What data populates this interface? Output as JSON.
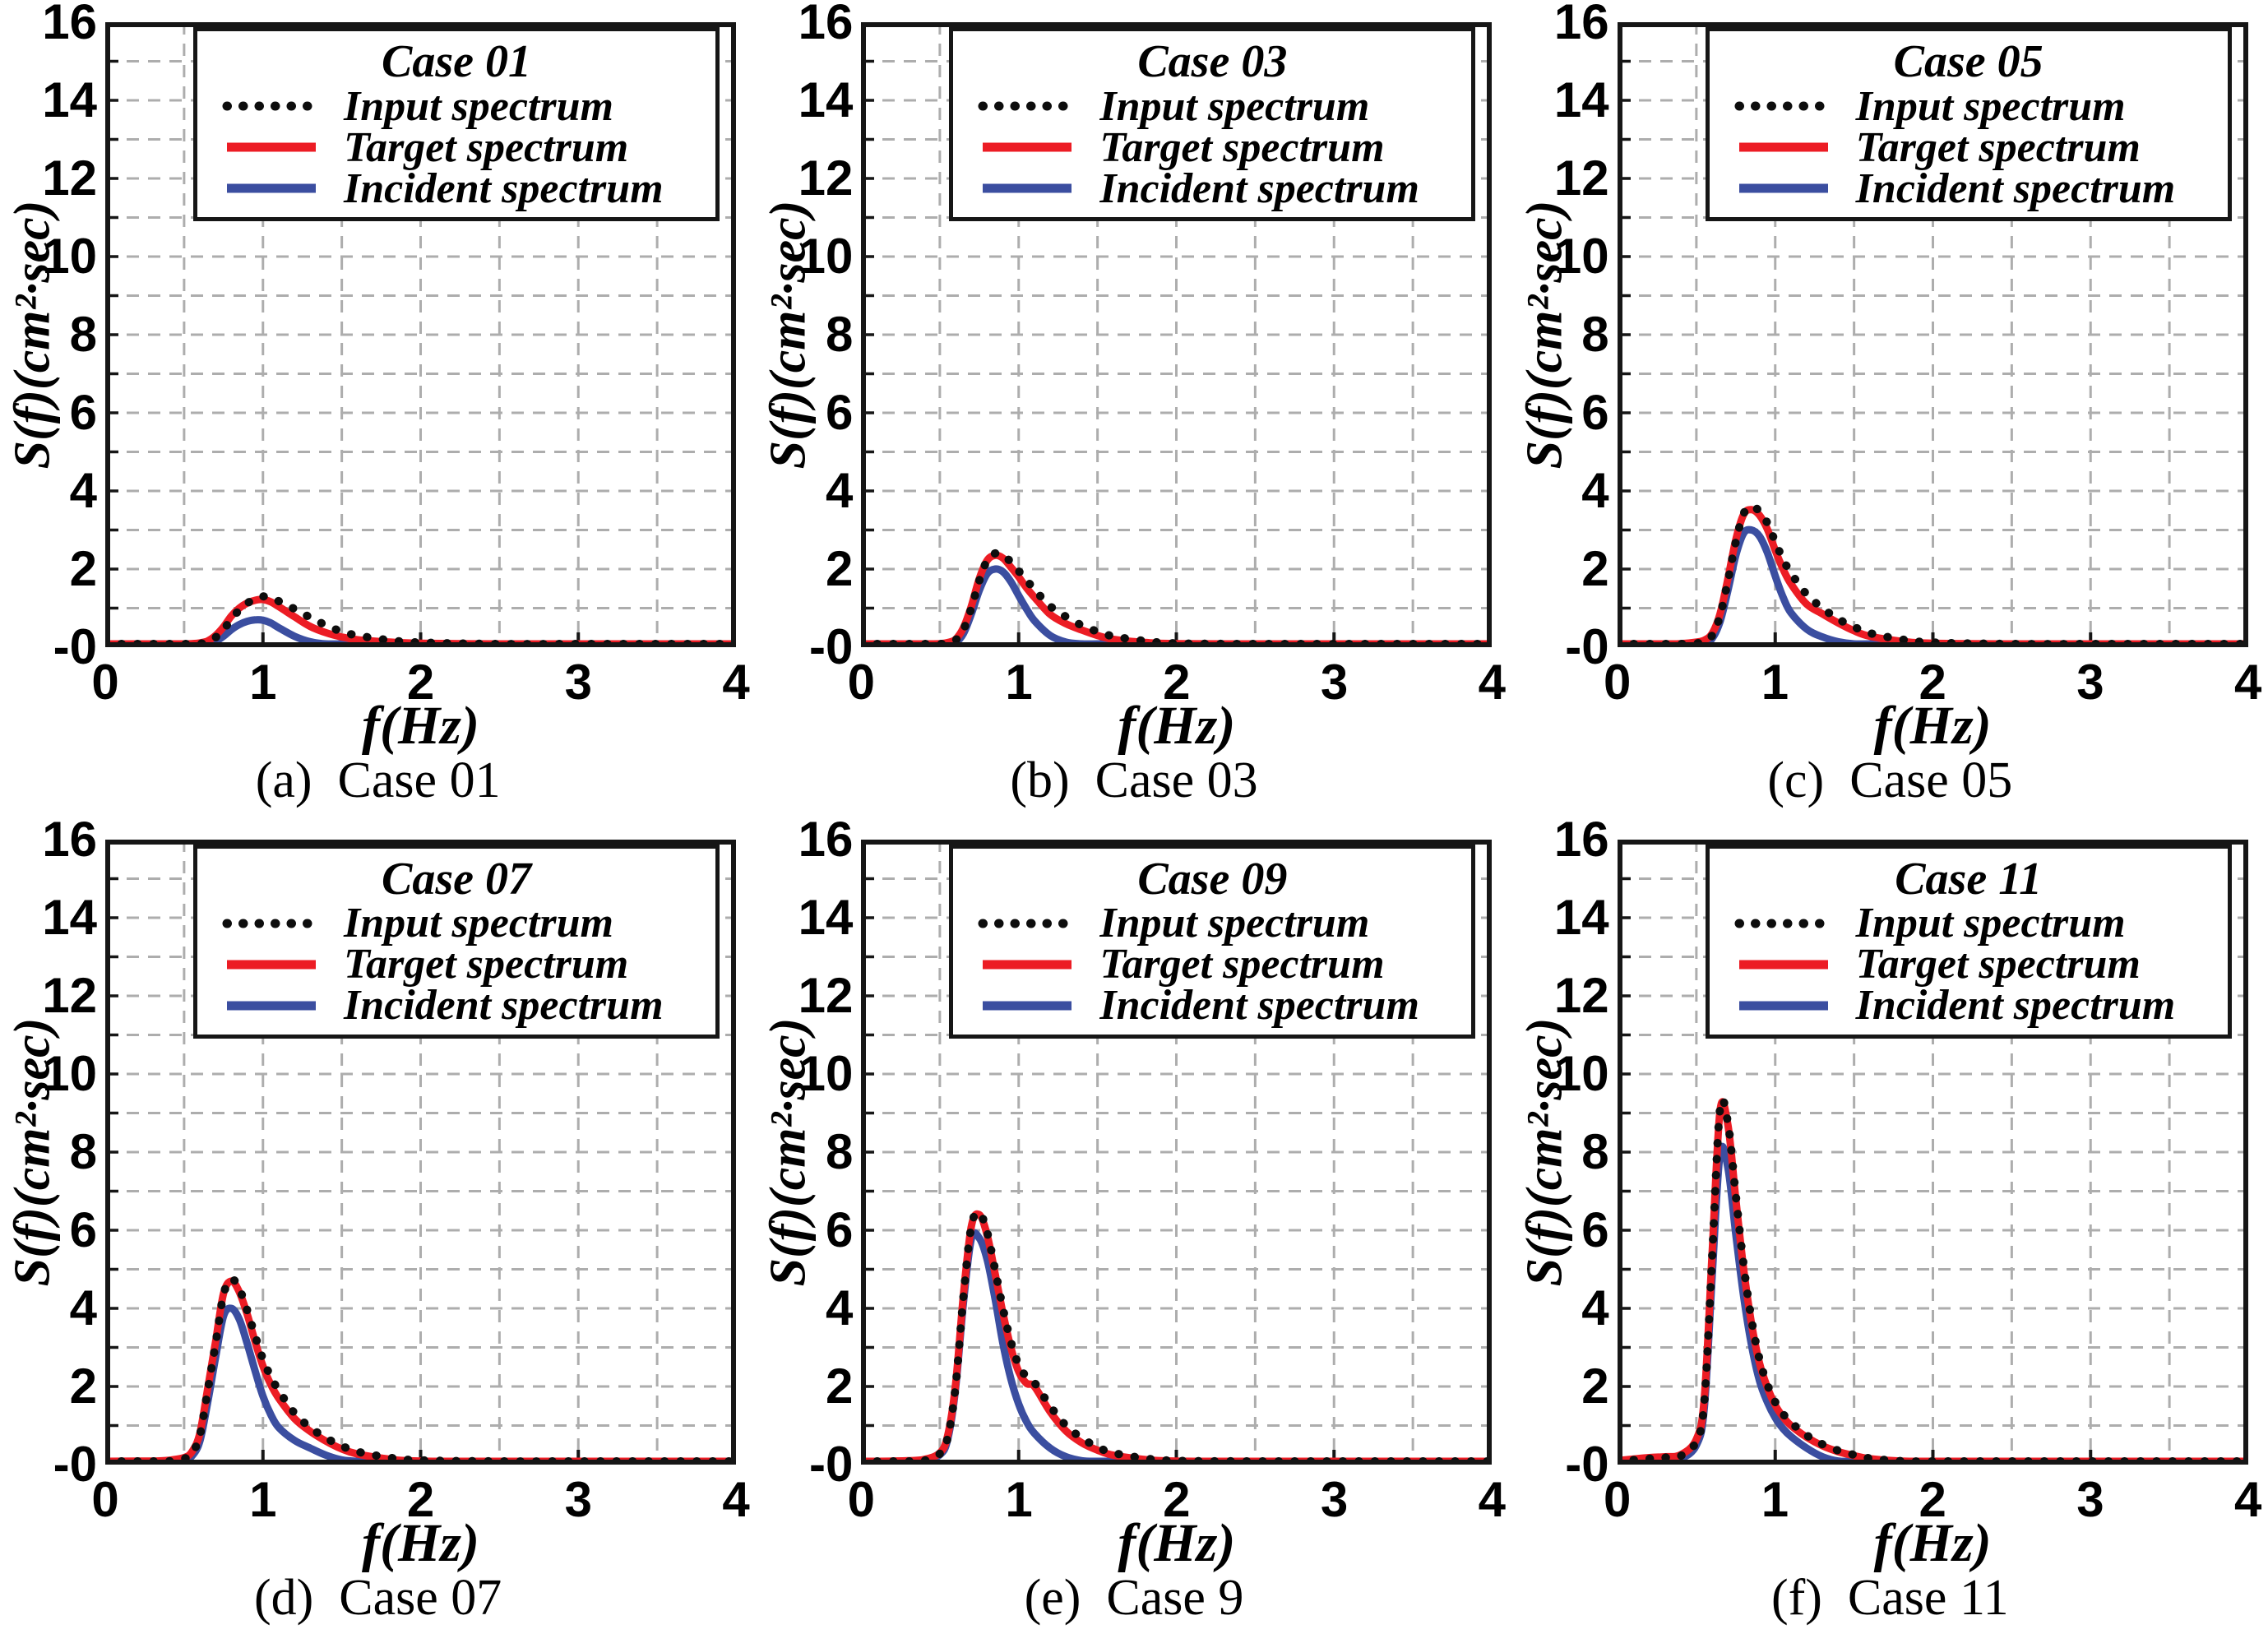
{
  "axes": {
    "xlabel": "f(Hz)",
    "ylabel": "S(f)(cm²·sec)",
    "x_ticks": [
      "0",
      "1",
      "2",
      "3",
      "4"
    ],
    "y_ticks": [
      "16",
      "14",
      "12",
      "10",
      "8",
      "6",
      "4",
      "2",
      "-0"
    ],
    "xlim": [
      0,
      4
    ],
    "ylim": [
      0,
      16
    ],
    "x_grid_step": 0.5,
    "y_grid_step": 1,
    "grid": "dashed"
  },
  "style": {
    "input_color": "#0d0d0d",
    "target_color": "#ec1c24",
    "incident_color": "#3b4ea0",
    "grid_color": "#adadad",
    "frame_color": "#161616",
    "background": "#ffffff"
  },
  "chart_data": [
    {
      "type": "line",
      "panel_label": "(a)",
      "caption": "(a)  Case 01",
      "legend_title": "Case 01",
      "xlabel": "f(Hz)",
      "ylabel": "S(f)(cm²·sec)",
      "xlim": [
        0,
        4
      ],
      "ylim": [
        0,
        16
      ],
      "legend_position": "top-right",
      "grid": "dashed",
      "x": [
        0,
        0.2,
        0.3,
        0.4,
        0.5,
        0.55,
        0.6,
        0.65,
        0.7,
        0.75,
        0.8,
        0.85,
        0.9,
        0.95,
        1.0,
        1.05,
        1.1,
        1.2,
        1.3,
        1.4,
        1.5,
        1.6,
        1.8,
        2.0,
        2.5,
        3.0,
        3.5,
        4.0
      ],
      "series": [
        {
          "name": "Input spectrum",
          "style": "dotted",
          "color": "#0d0d0d",
          "values": [
            0.05,
            0.05,
            0.05,
            0.05,
            0.06,
            0.07,
            0.09,
            0.13,
            0.25,
            0.45,
            0.72,
            0.95,
            1.12,
            1.25,
            1.3,
            1.28,
            1.18,
            0.98,
            0.76,
            0.56,
            0.4,
            0.3,
            0.18,
            0.12,
            0.08,
            0.07,
            0.06,
            0.06
          ]
        },
        {
          "name": "Target spectrum",
          "style": "solid",
          "color": "#ec1c24",
          "values": [
            0.07,
            0.07,
            0.07,
            0.07,
            0.08,
            0.09,
            0.11,
            0.16,
            0.3,
            0.52,
            0.8,
            1.0,
            1.13,
            1.2,
            1.22,
            1.16,
            1.04,
            0.78,
            0.53,
            0.37,
            0.26,
            0.19,
            0.13,
            0.1,
            0.08,
            0.08,
            0.08,
            0.08
          ]
        },
        {
          "name": "Incident spectrum",
          "style": "solid",
          "color": "#3b4ea0",
          "values": [
            0.02,
            0.02,
            0.02,
            0.02,
            0.03,
            0.04,
            0.05,
            0.08,
            0.15,
            0.28,
            0.45,
            0.58,
            0.66,
            0.7,
            0.69,
            0.62,
            0.5,
            0.28,
            0.14,
            0.08,
            0.05,
            0.03,
            0.02,
            0.02,
            0.01,
            0.01,
            0.01,
            0.01
          ]
        }
      ]
    },
    {
      "type": "line",
      "panel_label": "(b)",
      "caption": "(b)  Case 03",
      "legend_title": "Case 03",
      "xlabel": "f(Hz)",
      "ylabel": "S(f)(cm²·sec)",
      "xlim": [
        0,
        4
      ],
      "ylim": [
        0,
        16
      ],
      "legend_position": "top-right",
      "grid": "dashed",
      "x": [
        0,
        0.2,
        0.3,
        0.4,
        0.5,
        0.55,
        0.6,
        0.65,
        0.7,
        0.75,
        0.8,
        0.85,
        0.9,
        0.95,
        1.0,
        1.05,
        1.1,
        1.2,
        1.3,
        1.4,
        1.5,
        1.6,
        1.8,
        2.0,
        2.5,
        3.0,
        3.5,
        4.0
      ],
      "series": [
        {
          "name": "Input spectrum",
          "style": "dotted",
          "color": "#0d0d0d",
          "values": [
            0.05,
            0.05,
            0.05,
            0.05,
            0.07,
            0.1,
            0.18,
            0.45,
            1.0,
            1.7,
            2.22,
            2.4,
            2.37,
            2.18,
            1.95,
            1.72,
            1.48,
            1.05,
            0.78,
            0.56,
            0.4,
            0.28,
            0.16,
            0.1,
            0.07,
            0.06,
            0.05,
            0.05
          ]
        },
        {
          "name": "Target spectrum",
          "style": "solid",
          "color": "#ec1c24",
          "values": [
            0.07,
            0.07,
            0.07,
            0.07,
            0.09,
            0.12,
            0.2,
            0.5,
            1.05,
            1.75,
            2.22,
            2.35,
            2.28,
            2.05,
            1.8,
            1.52,
            1.28,
            0.84,
            0.6,
            0.44,
            0.3,
            0.2,
            0.12,
            0.09,
            0.08,
            0.08,
            0.08,
            0.08
          ]
        },
        {
          "name": "Incident spectrum",
          "style": "solid",
          "color": "#3b4ea0",
          "values": [
            0.02,
            0.02,
            0.02,
            0.02,
            0.04,
            0.06,
            0.12,
            0.35,
            0.85,
            1.45,
            1.88,
            2.0,
            1.93,
            1.68,
            1.32,
            0.98,
            0.68,
            0.3,
            0.13,
            0.07,
            0.04,
            0.03,
            0.02,
            0.02,
            0.01,
            0.01,
            0.01,
            0.01
          ]
        }
      ]
    },
    {
      "type": "line",
      "panel_label": "(c)",
      "caption": "(c)  Case 05",
      "legend_title": "Case 05",
      "xlabel": "f(Hz)",
      "ylabel": "S(f)(cm²·sec)",
      "xlim": [
        0,
        4
      ],
      "ylim": [
        0,
        16
      ],
      "legend_position": "top-right",
      "grid": "dashed",
      "x": [
        0,
        0.2,
        0.3,
        0.4,
        0.5,
        0.55,
        0.6,
        0.65,
        0.7,
        0.75,
        0.8,
        0.85,
        0.9,
        0.95,
        1.0,
        1.05,
        1.1,
        1.2,
        1.3,
        1.4,
        1.5,
        1.6,
        1.8,
        2.0,
        2.5,
        3.0,
        3.5,
        4.0
      ],
      "series": [
        {
          "name": "Input spectrum",
          "style": "dotted",
          "color": "#0d0d0d",
          "values": [
            0.05,
            0.05,
            0.05,
            0.06,
            0.1,
            0.15,
            0.3,
            0.8,
            1.7,
            2.7,
            3.42,
            3.6,
            3.48,
            3.18,
            2.7,
            2.25,
            1.9,
            1.35,
            1.0,
            0.72,
            0.52,
            0.36,
            0.2,
            0.12,
            0.08,
            0.06,
            0.06,
            0.06
          ]
        },
        {
          "name": "Target spectrum",
          "style": "solid",
          "color": "#ec1c24",
          "values": [
            0.08,
            0.08,
            0.08,
            0.09,
            0.13,
            0.18,
            0.35,
            0.85,
            1.75,
            2.75,
            3.4,
            3.52,
            3.38,
            3.02,
            2.48,
            2.0,
            1.62,
            1.1,
            0.85,
            0.62,
            0.42,
            0.28,
            0.15,
            0.1,
            0.08,
            0.08,
            0.08,
            0.08
          ]
        },
        {
          "name": "Incident spectrum",
          "style": "solid",
          "color": "#3b4ea0",
          "values": [
            0.02,
            0.02,
            0.02,
            0.03,
            0.06,
            0.1,
            0.22,
            0.65,
            1.45,
            2.35,
            2.92,
            3.0,
            2.84,
            2.42,
            1.82,
            1.28,
            0.88,
            0.46,
            0.26,
            0.14,
            0.08,
            0.05,
            0.03,
            0.02,
            0.01,
            0.01,
            0.01,
            0.01
          ]
        }
      ]
    },
    {
      "type": "line",
      "panel_label": "(d)",
      "caption": "(d)  Case 07",
      "legend_title": "Case 07",
      "xlabel": "f(Hz)",
      "ylabel": "S(f)(cm²·sec)",
      "xlim": [
        0,
        4
      ],
      "ylim": [
        0,
        16
      ],
      "legend_position": "top-right",
      "grid": "dashed",
      "x": [
        0,
        0.2,
        0.3,
        0.4,
        0.5,
        0.55,
        0.6,
        0.65,
        0.7,
        0.75,
        0.8,
        0.85,
        0.9,
        0.95,
        1.0,
        1.05,
        1.1,
        1.2,
        1.3,
        1.4,
        1.5,
        1.6,
        1.8,
        2.0,
        2.5,
        3.0,
        3.5,
        4.0
      ],
      "series": [
        {
          "name": "Input spectrum",
          "style": "dotted",
          "color": "#0d0d0d",
          "values": [
            0.05,
            0.06,
            0.06,
            0.08,
            0.15,
            0.3,
            0.75,
            1.9,
            3.1,
            4.35,
            4.75,
            4.5,
            3.95,
            3.3,
            2.7,
            2.25,
            1.9,
            1.32,
            0.95,
            0.68,
            0.48,
            0.33,
            0.18,
            0.11,
            0.07,
            0.06,
            0.06,
            0.06
          ]
        },
        {
          "name": "Target spectrum",
          "style": "solid",
          "color": "#ec1c24",
          "values": [
            0.08,
            0.09,
            0.09,
            0.11,
            0.18,
            0.33,
            0.8,
            1.95,
            3.15,
            4.38,
            4.7,
            4.42,
            3.85,
            3.15,
            2.52,
            2.05,
            1.7,
            1.18,
            0.85,
            0.6,
            0.4,
            0.27,
            0.14,
            0.09,
            0.08,
            0.08,
            0.08,
            0.08
          ]
        },
        {
          "name": "Incident spectrum",
          "style": "solid",
          "color": "#3b4ea0",
          "values": [
            0.02,
            0.02,
            0.03,
            0.04,
            0.1,
            0.22,
            0.6,
            1.6,
            2.75,
            3.8,
            4.0,
            3.72,
            3.1,
            2.4,
            1.75,
            1.28,
            0.95,
            0.62,
            0.42,
            0.24,
            0.12,
            0.06,
            0.03,
            0.02,
            0.01,
            0.01,
            0.01,
            0.01
          ]
        }
      ]
    },
    {
      "type": "line",
      "panel_label": "(e)",
      "caption": "(e)  Case 9",
      "legend_title": "Case 09",
      "xlabel": "f(Hz)",
      "ylabel": "S(f)(cm²·sec)",
      "xlim": [
        0,
        4
      ],
      "ylim": [
        0,
        16
      ],
      "legend_position": "top-right",
      "grid": "dashed",
      "x": [
        0,
        0.2,
        0.3,
        0.4,
        0.5,
        0.55,
        0.6,
        0.65,
        0.7,
        0.75,
        0.8,
        0.85,
        0.9,
        0.95,
        1.0,
        1.05,
        1.1,
        1.2,
        1.3,
        1.4,
        1.5,
        1.6,
        1.8,
        2.0,
        2.5,
        3.0,
        3.5,
        4.0
      ],
      "series": [
        {
          "name": "Input spectrum",
          "style": "dotted",
          "color": "#0d0d0d",
          "values": [
            0.05,
            0.06,
            0.07,
            0.1,
            0.28,
            0.7,
            2.0,
            4.3,
            6.1,
            6.45,
            5.95,
            5.0,
            4.0,
            3.15,
            2.55,
            2.25,
            2.1,
            1.5,
            1.0,
            0.68,
            0.45,
            0.3,
            0.16,
            0.1,
            0.07,
            0.06,
            0.06,
            0.06
          ]
        },
        {
          "name": "Target spectrum",
          "style": "solid",
          "color": "#ec1c24",
          "values": [
            0.08,
            0.09,
            0.1,
            0.13,
            0.3,
            0.75,
            2.05,
            4.35,
            6.1,
            6.4,
            5.88,
            4.9,
            3.88,
            3.0,
            2.38,
            2.08,
            2.0,
            1.35,
            0.86,
            0.56,
            0.37,
            0.24,
            0.13,
            0.09,
            0.08,
            0.08,
            0.08,
            0.08
          ]
        },
        {
          "name": "Incident spectrum",
          "style": "solid",
          "color": "#3b4ea0",
          "values": [
            0.03,
            0.08,
            0.09,
            0.1,
            0.25,
            0.65,
            1.95,
            4.15,
            5.78,
            5.8,
            5.25,
            4.25,
            3.1,
            2.2,
            1.55,
            1.1,
            0.8,
            0.42,
            0.2,
            0.1,
            0.06,
            0.04,
            0.02,
            0.02,
            0.01,
            0.01,
            0.01,
            0.01
          ]
        }
      ]
    },
    {
      "type": "line",
      "panel_label": "(f)",
      "caption": "(f)  Case 11",
      "legend_title": "Case 11",
      "xlabel": "f(Hz)",
      "ylabel": "S(f)(cm²·sec)",
      "xlim": [
        0,
        4
      ],
      "ylim": [
        0,
        16
      ],
      "legend_position": "top-right",
      "grid": "dashed",
      "x": [
        0,
        0.2,
        0.3,
        0.4,
        0.5,
        0.55,
        0.6,
        0.65,
        0.7,
        0.75,
        0.8,
        0.85,
        0.9,
        0.95,
        1.0,
        1.05,
        1.1,
        1.2,
        1.3,
        1.4,
        1.5,
        1.6,
        1.8,
        2.0,
        2.5,
        3.0,
        3.5,
        4.0
      ],
      "series": [
        {
          "name": "Input spectrum",
          "style": "dotted",
          "color": "#0d0d0d",
          "values": [
            0.06,
            0.15,
            0.18,
            0.22,
            0.6,
            1.6,
            5.3,
            9.1,
            8.75,
            6.9,
            5.1,
            3.7,
            2.7,
            2.05,
            1.6,
            1.3,
            1.08,
            0.75,
            0.52,
            0.36,
            0.25,
            0.16,
            0.09,
            0.07,
            0.06,
            0.05,
            0.05,
            0.05
          ]
        },
        {
          "name": "Target spectrum",
          "style": "solid",
          "color": "#ec1c24",
          "values": [
            0.1,
            0.18,
            0.2,
            0.25,
            0.65,
            1.7,
            5.4,
            9.05,
            8.7,
            6.8,
            5.0,
            3.6,
            2.6,
            1.98,
            1.52,
            1.22,
            1.0,
            0.7,
            0.48,
            0.33,
            0.23,
            0.15,
            0.09,
            0.07,
            0.07,
            0.07,
            0.07,
            0.07
          ]
        },
        {
          "name": "Incident spectrum",
          "style": "solid",
          "color": "#3b4ea0",
          "values": [
            0.03,
            0.1,
            0.12,
            0.15,
            0.5,
            1.45,
            4.8,
            7.95,
            7.6,
            5.9,
            4.3,
            3.05,
            2.15,
            1.6,
            1.2,
            0.92,
            0.72,
            0.42,
            0.2,
            0.09,
            0.05,
            0.03,
            0.02,
            0.01,
            0.01,
            0.01,
            0.01,
            0.01
          ]
        }
      ]
    }
  ]
}
